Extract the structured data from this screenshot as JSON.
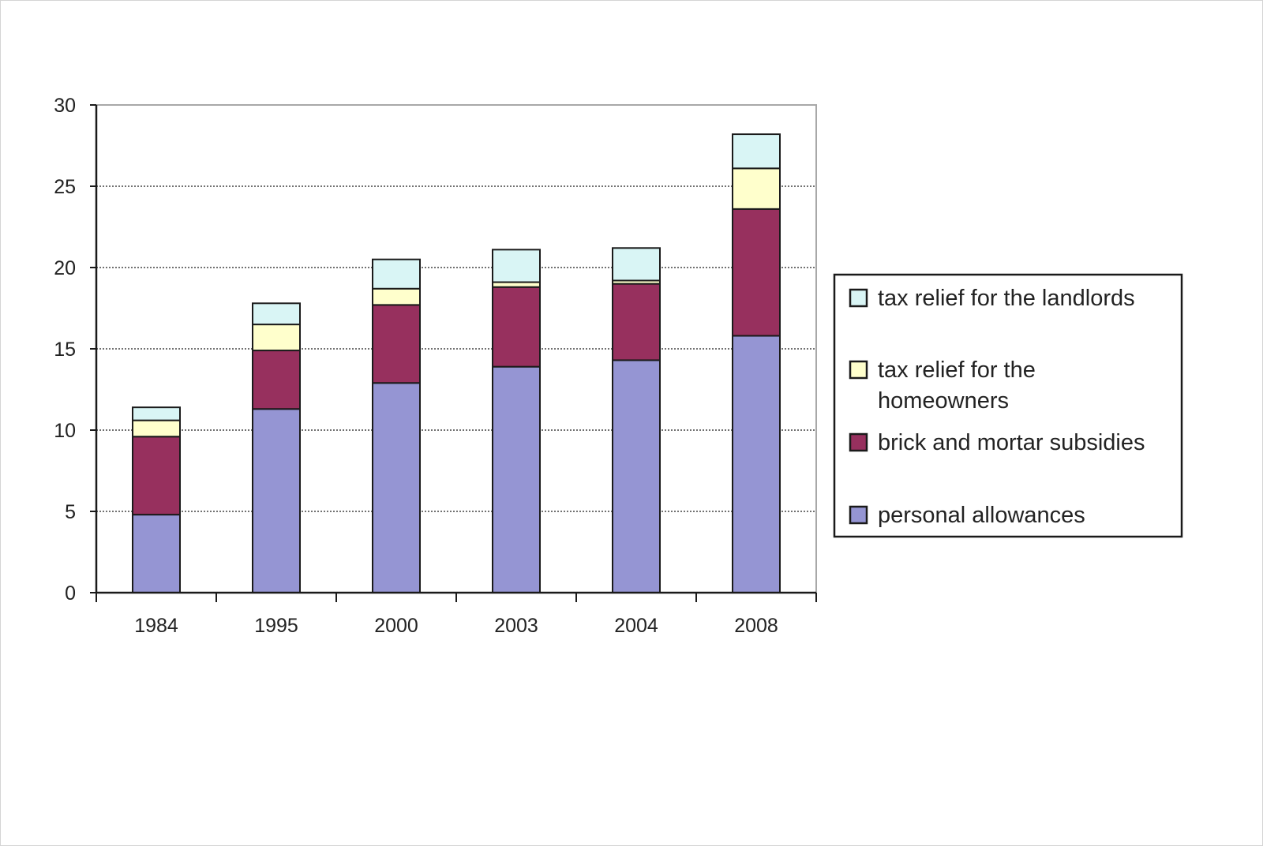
{
  "chart_data": {
    "type": "bar",
    "stacked": true,
    "title": "",
    "xlabel": "",
    "ylabel": "",
    "categories": [
      "1984",
      "1995",
      "2000",
      "2003",
      "2004",
      "2008"
    ],
    "ylim": [
      0,
      30
    ],
    "yticks": [
      0,
      5,
      10,
      15,
      20,
      25,
      30
    ],
    "grid": true,
    "legend_position": "right",
    "series": [
      {
        "name": "personal allowances",
        "color": "#9595d3",
        "values": [
          4.8,
          11.3,
          12.9,
          13.9,
          14.3,
          15.8
        ]
      },
      {
        "name": "brick and mortar subsidies",
        "color": "#97305e",
        "values": [
          4.8,
          3.6,
          4.8,
          4.9,
          4.7,
          7.8
        ]
      },
      {
        "name": "tax relief for the homeowners",
        "color": "#ffffcc",
        "values": [
          1.0,
          1.6,
          1.0,
          0.3,
          0.2,
          2.5
        ]
      },
      {
        "name": "tax relief for the landlords",
        "color": "#d9f5f5",
        "values": [
          0.8,
          1.3,
          1.8,
          2.0,
          2.0,
          2.1
        ]
      }
    ],
    "legend": [
      {
        "label": "tax relief for the landlords",
        "color": "#d9f5f5"
      },
      {
        "label_lines": [
          "tax relief for the",
          "homeowners"
        ],
        "color": "#ffffcc"
      },
      {
        "label": "brick and mortar subsidies",
        "color": "#97305e"
      },
      {
        "label": "personal allowances",
        "color": "#9595d3"
      }
    ]
  }
}
